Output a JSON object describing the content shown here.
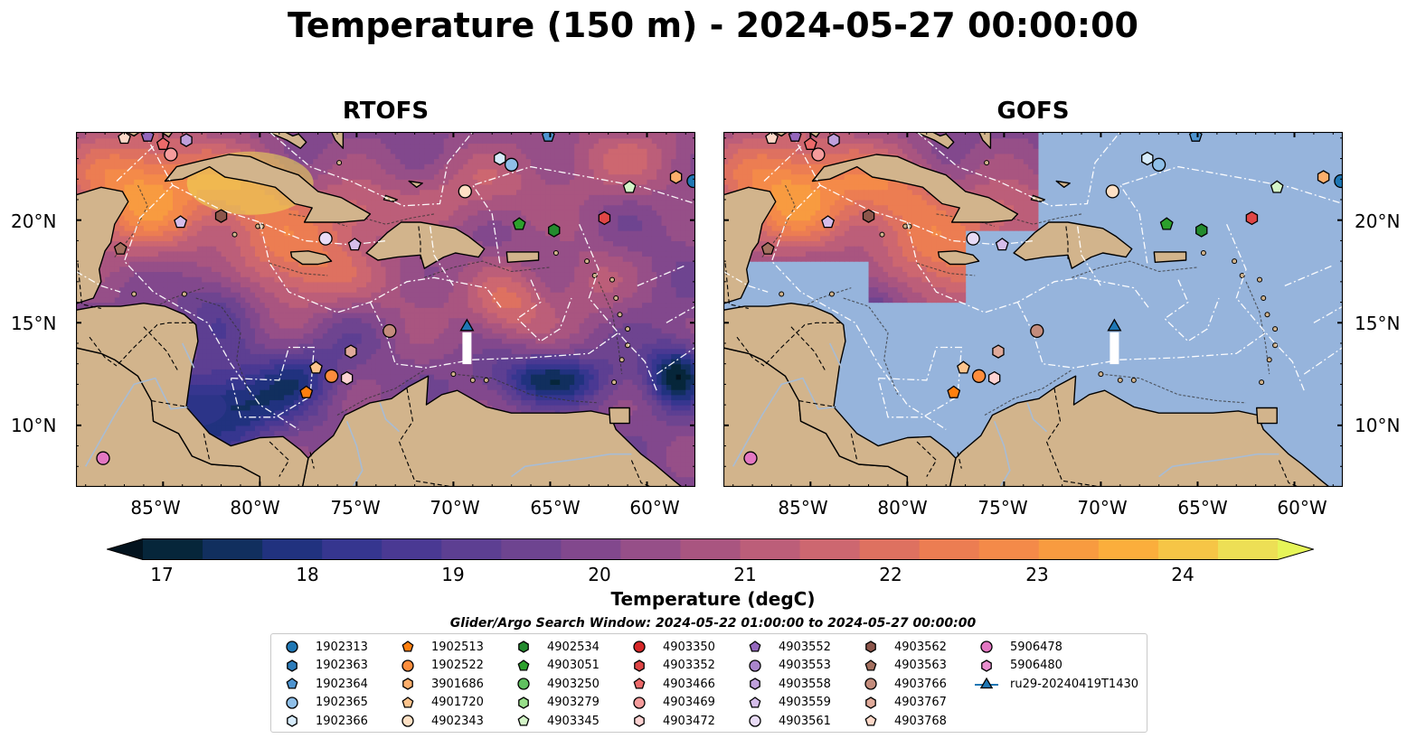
{
  "title": "Temperature (150 m) - 2024-05-27 00:00:00",
  "panels": [
    {
      "title": "RTOFS",
      "model_field": "full"
    },
    {
      "title": "GOFS",
      "model_field": "partial"
    }
  ],
  "map": {
    "lon_range": [
      -89.5,
      -57.5
    ],
    "lat_range": [
      7,
      24.3
    ],
    "lat_labels": [
      "20°N",
      "15°N",
      "10°N"
    ],
    "lon_labels": [
      "85°W",
      "80°W",
      "75°W",
      "70°W",
      "65°W",
      "60°W"
    ],
    "colors": {
      "land": "#d2b48c",
      "ocean": "#96b4dc",
      "coast": "#000000",
      "eez": "#ffffff",
      "borders": "#000000",
      "rivers": "#a8bcd4"
    }
  },
  "colorbar": {
    "label": "Temperature (degC)",
    "ticks": [
      "17",
      "18",
      "19",
      "20",
      "21",
      "22",
      "23",
      "24"
    ],
    "min": 16.5,
    "max": 24.5,
    "step": 0.5,
    "colors": [
      "#06263a",
      "#112f5e",
      "#21327f",
      "#36368f",
      "#4a3993",
      "#5d3f92",
      "#6e4490",
      "#82488d",
      "#964f88",
      "#a95580",
      "#bc5e79",
      "#cd6770",
      "#de7160",
      "#ec7d52",
      "#f48a49",
      "#f89b40",
      "#fbae3c",
      "#f6c546",
      "#eddf55"
    ],
    "under_color": "#03131e",
    "over_color": "#e6f558"
  },
  "search_window": "Glider/Argo Search Window: 2024-05-22 01:00:00 to 2024-05-27 00:00:00",
  "legend": [
    {
      "id": "1902313",
      "marker": "circle",
      "color": "#1f77b4"
    },
    {
      "id": "1902363",
      "marker": "hexagon",
      "color": "#2b7bba"
    },
    {
      "id": "1902364",
      "marker": "pentagon",
      "color": "#4e94d0"
    },
    {
      "id": "1902365",
      "marker": "circle",
      "color": "#8fbfe8"
    },
    {
      "id": "1902366",
      "marker": "hexagon",
      "color": "#d6ebfb"
    },
    {
      "id": "1902513",
      "marker": "pentagon",
      "color": "#ff7f0e"
    },
    {
      "id": "1902522",
      "marker": "circle",
      "color": "#fd8d3c"
    },
    {
      "id": "3901686",
      "marker": "hexagon",
      "color": "#fdae6b"
    },
    {
      "id": "4901720",
      "marker": "pentagon",
      "color": "#fdc48d"
    },
    {
      "id": "4902343",
      "marker": "circle",
      "color": "#fee0c4"
    },
    {
      "id": "4902534",
      "marker": "hexagon",
      "color": "#238b2e"
    },
    {
      "id": "4903051",
      "marker": "pentagon",
      "color": "#2ca02c"
    },
    {
      "id": "4903250",
      "marker": "circle",
      "color": "#60c060"
    },
    {
      "id": "4903279",
      "marker": "hexagon",
      "color": "#98df8a"
    },
    {
      "id": "4903345",
      "marker": "pentagon",
      "color": "#d4f5c8"
    },
    {
      "id": "4903350",
      "marker": "circle",
      "color": "#d62728"
    },
    {
      "id": "4903352",
      "marker": "hexagon",
      "color": "#e04646"
    },
    {
      "id": "4903466",
      "marker": "pentagon",
      "color": "#ec6a6a"
    },
    {
      "id": "4903469",
      "marker": "circle",
      "color": "#f59c9c"
    },
    {
      "id": "4903472",
      "marker": "hexagon",
      "color": "#fcd2d2"
    },
    {
      "id": "4903552",
      "marker": "pentagon",
      "color": "#9467bd"
    },
    {
      "id": "4903553",
      "marker": "circle",
      "color": "#a985cc"
    },
    {
      "id": "4903558",
      "marker": "hexagon",
      "color": "#bfa0dc"
    },
    {
      "id": "4903559",
      "marker": "pentagon",
      "color": "#d5bdea"
    },
    {
      "id": "4903561",
      "marker": "circle",
      "color": "#e8dbf6"
    },
    {
      "id": "4903562",
      "marker": "hexagon",
      "color": "#8c564b"
    },
    {
      "id": "4903563",
      "marker": "pentagon",
      "color": "#a4705f"
    },
    {
      "id": "4903766",
      "marker": "circle",
      "color": "#c48c7c"
    },
    {
      "id": "4903767",
      "marker": "hexagon",
      "color": "#e0aa9a"
    },
    {
      "id": "4903768",
      "marker": "pentagon",
      "color": "#fdd8c8"
    },
    {
      "id": "5906478",
      "marker": "circle",
      "color": "#e377c2"
    },
    {
      "id": "5906480",
      "marker": "hexagon",
      "color": "#ea8fcf"
    },
    {
      "id": "ru29-20240419T1430",
      "marker": "triangle-line",
      "color": "#1f77b4"
    }
  ],
  "floats": [
    {
      "id": "1902313",
      "lon": -57.6,
      "lat": 21.9
    },
    {
      "id": "1902364",
      "lon": -65.1,
      "lat": 24.1
    },
    {
      "id": "1902365",
      "lon": -67.0,
      "lat": 22.7
    },
    {
      "id": "1902366",
      "lon": -67.6,
      "lat": 23.0
    },
    {
      "id": "1902513",
      "lon": -77.6,
      "lat": 11.6
    },
    {
      "id": "1902522",
      "lon": -76.3,
      "lat": 12.4
    },
    {
      "id": "3901686",
      "lon": -58.5,
      "lat": 22.1
    },
    {
      "id": "4901720",
      "lon": -77.1,
      "lat": 12.8
    },
    {
      "id": "4902343",
      "lon": -69.4,
      "lat": 21.4
    },
    {
      "id": "4902534",
      "lon": -64.8,
      "lat": 19.5
    },
    {
      "id": "4903051",
      "lon": -66.6,
      "lat": 19.8
    },
    {
      "id": "4903345",
      "lon": -60.9,
      "lat": 21.6
    },
    {
      "id": "4903352",
      "lon": -62.2,
      "lat": 20.1
    },
    {
      "id": "4903466",
      "lon": -85.0,
      "lat": 23.7
    },
    {
      "id": "4903469",
      "lon": -84.6,
      "lat": 23.2
    },
    {
      "id": "4903472",
      "lon": -75.5,
      "lat": 12.3
    },
    {
      "id": "4903552",
      "lon": -85.8,
      "lat": 24.1
    },
    {
      "id": "4903558",
      "lon": -83.8,
      "lat": 23.9
    },
    {
      "id": "4903559",
      "lon": -84.1,
      "lat": 19.9
    },
    {
      "id": "4903561",
      "lon": -76.6,
      "lat": 19.1
    },
    {
      "id": "4903562",
      "lon": -82.0,
      "lat": 20.2
    },
    {
      "id": "4903563",
      "lon": -87.2,
      "lat": 18.6
    },
    {
      "id": "4903766",
      "lon": -73.3,
      "lat": 14.6
    },
    {
      "id": "4903767",
      "lon": -75.3,
      "lat": 13.6
    },
    {
      "id": "4903768",
      "lon": -87.0,
      "lat": 24.0
    },
    {
      "id": "4903559",
      "lon": -75.1,
      "lat": 18.8
    },
    {
      "id": "5906478",
      "lon": -88.1,
      "lat": 8.4
    }
  ],
  "glider": {
    "id": "ru29-20240419T1430",
    "lon": -69.3,
    "lat": 14.8,
    "track_end_lat": 13.6
  }
}
